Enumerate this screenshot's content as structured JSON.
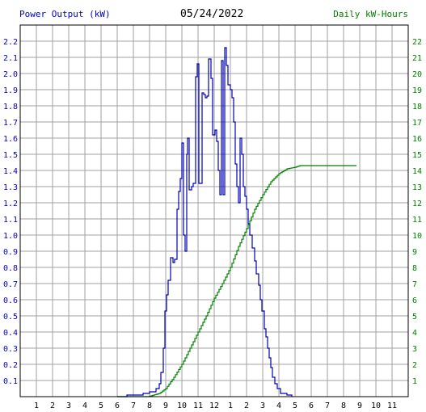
{
  "header": {
    "left_axis_title": "Power Output (kW)",
    "date": "05/24/2022",
    "right_axis_title": "Daily kW-Hours"
  },
  "chart_data": {
    "type": "line",
    "title": "05/24/2022",
    "ylabel": "Power Output (kW)",
    "y2label": "Daily kW-Hours",
    "x_ticks": [
      "1",
      "2",
      "3",
      "4",
      "5",
      "6",
      "7",
      "8",
      "9",
      "10",
      "11",
      "12",
      "1",
      "2",
      "3",
      "4",
      "5",
      "6",
      "7",
      "8",
      "9",
      "10",
      "11"
    ],
    "x_range_hours": [
      0,
      24
    ],
    "ylim": [
      0,
      2.3
    ],
    "y_ticks": [
      "0.1",
      "0.2",
      "0.3",
      "0.4",
      "0.5",
      "0.6",
      "0.7",
      "0.8",
      "0.9",
      "1.0",
      "1.1",
      "1.2",
      "1.3",
      "1.4",
      "1.5",
      "1.6",
      "1.7",
      "1.8",
      "1.9",
      "2.0",
      "2.1",
      "2.2"
    ],
    "y2lim": [
      0,
      23
    ],
    "y2_ticks": [
      "1",
      "2",
      "3",
      "4",
      "5",
      "6",
      "7",
      "8",
      "9",
      "10",
      "11",
      "12",
      "13",
      "14",
      "15",
      "16",
      "17",
      "18",
      "19",
      "20",
      "21",
      "22"
    ],
    "grid": true,
    "colors": {
      "power": "#0000b4",
      "energy": "#008000",
      "grid": "#a0a0a0",
      "left_axis_text": "#0000c0",
      "right_axis_text": "#008000"
    },
    "series": [
      {
        "name": "Power Output (kW)",
        "axis": "left",
        "points": [
          [
            6.0,
            0.0
          ],
          [
            6.6,
            0.01
          ],
          [
            7.6,
            0.02
          ],
          [
            8.0,
            0.03
          ],
          [
            8.4,
            0.05
          ],
          [
            8.6,
            0.08
          ],
          [
            8.7,
            0.15
          ],
          [
            8.85,
            0.3
          ],
          [
            8.95,
            0.53
          ],
          [
            9.05,
            0.63
          ],
          [
            9.15,
            0.72
          ],
          [
            9.3,
            0.86
          ],
          [
            9.45,
            0.83
          ],
          [
            9.55,
            0.85
          ],
          [
            9.7,
            1.16
          ],
          [
            9.8,
            1.27
          ],
          [
            9.9,
            1.35
          ],
          [
            10.0,
            1.57
          ],
          [
            10.1,
            1.0
          ],
          [
            10.2,
            0.9
          ],
          [
            10.3,
            1.5
          ],
          [
            10.35,
            1.6
          ],
          [
            10.45,
            1.28
          ],
          [
            10.6,
            1.3
          ],
          [
            10.7,
            1.32
          ],
          [
            10.85,
            1.98
          ],
          [
            10.95,
            2.06
          ],
          [
            11.05,
            1.32
          ],
          [
            11.25,
            1.88
          ],
          [
            11.35,
            1.87
          ],
          [
            11.45,
            1.85
          ],
          [
            11.55,
            1.86
          ],
          [
            11.65,
            2.09
          ],
          [
            11.8,
            1.97
          ],
          [
            11.9,
            1.62
          ],
          [
            12.05,
            1.65
          ],
          [
            12.15,
            1.58
          ],
          [
            12.25,
            1.4
          ],
          [
            12.35,
            1.25
          ],
          [
            12.45,
            2.08
          ],
          [
            12.55,
            1.25
          ],
          [
            12.65,
            2.16
          ],
          [
            12.75,
            2.05
          ],
          [
            12.85,
            1.93
          ],
          [
            13.0,
            1.9
          ],
          [
            13.1,
            1.85
          ],
          [
            13.2,
            1.7
          ],
          [
            13.3,
            1.44
          ],
          [
            13.4,
            1.3
          ],
          [
            13.5,
            1.2
          ],
          [
            13.6,
            1.6
          ],
          [
            13.7,
            1.5
          ],
          [
            13.8,
            1.3
          ],
          [
            13.9,
            1.24
          ],
          [
            14.0,
            1.16
          ],
          [
            14.1,
            1.07
          ],
          [
            14.2,
            1.0
          ],
          [
            14.35,
            0.92
          ],
          [
            14.5,
            0.84
          ],
          [
            14.6,
            0.76
          ],
          [
            14.75,
            0.69
          ],
          [
            14.85,
            0.6
          ],
          [
            14.95,
            0.53
          ],
          [
            15.1,
            0.42
          ],
          [
            15.2,
            0.37
          ],
          [
            15.3,
            0.3
          ],
          [
            15.4,
            0.24
          ],
          [
            15.5,
            0.18
          ],
          [
            15.6,
            0.12
          ],
          [
            15.75,
            0.08
          ],
          [
            15.9,
            0.05
          ],
          [
            16.1,
            0.02
          ],
          [
            16.5,
            0.01
          ],
          [
            16.8,
            0.0
          ]
        ]
      },
      {
        "name": "Daily kW-Hours",
        "axis": "right",
        "points": [
          [
            6.0,
            0.0
          ],
          [
            7.9,
            0.0
          ],
          [
            8.6,
            0.2
          ],
          [
            9.0,
            0.5
          ],
          [
            9.5,
            1.2
          ],
          [
            10.0,
            2.0
          ],
          [
            10.5,
            3.0
          ],
          [
            11.0,
            4.0
          ],
          [
            11.5,
            5.0
          ],
          [
            12.0,
            6.1
          ],
          [
            12.5,
            7.0
          ],
          [
            13.0,
            8.0
          ],
          [
            13.5,
            9.3
          ],
          [
            14.0,
            10.4
          ],
          [
            14.5,
            11.6
          ],
          [
            15.0,
            12.5
          ],
          [
            15.5,
            13.3
          ],
          [
            16.0,
            13.8
          ],
          [
            16.5,
            14.1
          ],
          [
            17.0,
            14.2
          ],
          [
            17.3,
            14.3
          ],
          [
            20.8,
            14.3
          ]
        ]
      }
    ]
  }
}
